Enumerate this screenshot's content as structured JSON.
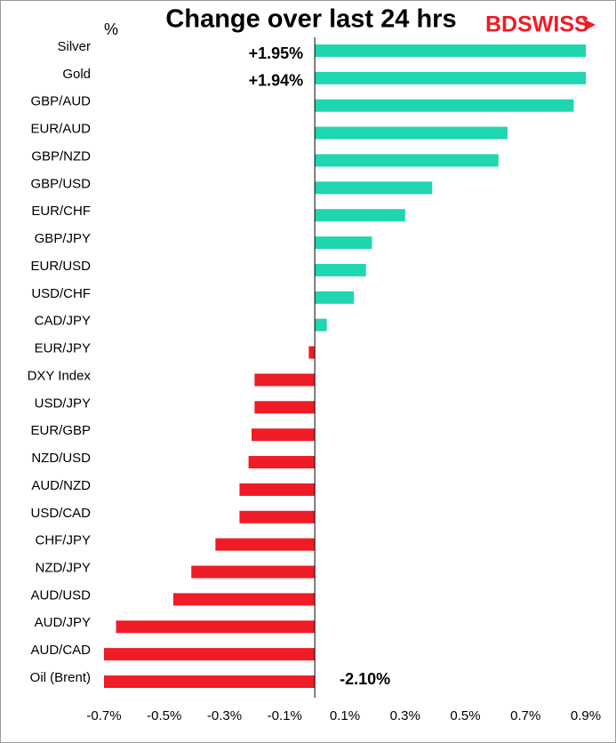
{
  "chart_data": {
    "type": "barh",
    "title": "Change over last 24 hrs",
    "unit_label": "%",
    "logo": "BDSWISS",
    "categories": [
      "Silver",
      "Gold",
      "GBP/AUD",
      "EUR/AUD",
      "GBP/NZD",
      "GBP/USD",
      "EUR/CHF",
      "GBP/JPY",
      "EUR/USD",
      "USD/CHF",
      "CAD/JPY",
      "EUR/JPY",
      "DXY Index",
      "USD/JPY",
      "EUR/GBP",
      "NZD/USD",
      "AUD/NZD",
      "USD/CAD",
      "CHF/JPY",
      "NZD/JPY",
      "AUD/USD",
      "AUD/JPY",
      "AUD/CAD",
      "Oil (Brent)"
    ],
    "values": [
      1.95,
      1.94,
      0.86,
      0.64,
      0.61,
      0.39,
      0.3,
      0.19,
      0.17,
      0.13,
      0.04,
      -0.02,
      -0.2,
      -0.2,
      -0.21,
      -0.22,
      -0.25,
      -0.25,
      -0.33,
      -0.41,
      -0.47,
      -0.66,
      -0.7,
      -2.1
    ],
    "value_labels": [
      "+1.95%",
      "+1.94%",
      null,
      null,
      null,
      null,
      null,
      null,
      null,
      null,
      null,
      null,
      null,
      null,
      null,
      null,
      null,
      null,
      null,
      null,
      null,
      null,
      null,
      "-2.10%"
    ],
    "positive_color": "#1fd6b0",
    "negative_color": "#ee1c25",
    "xlim": [
      -0.7,
      0.9
    ],
    "xticks": [
      {
        "value": -0.7,
        "label": "-0.7%"
      },
      {
        "value": -0.5,
        "label": "-0.5%"
      },
      {
        "value": -0.3,
        "label": "-0.3%"
      },
      {
        "value": -0.1,
        "label": "-0.1%"
      },
      {
        "value": 0.1,
        "label": "0.1%"
      },
      {
        "value": 0.3,
        "label": "0.3%"
      },
      {
        "value": 0.5,
        "label": "0.5%"
      },
      {
        "value": 0.7,
        "label": "0.7%"
      },
      {
        "value": 0.9,
        "label": "0.9%"
      }
    ]
  }
}
